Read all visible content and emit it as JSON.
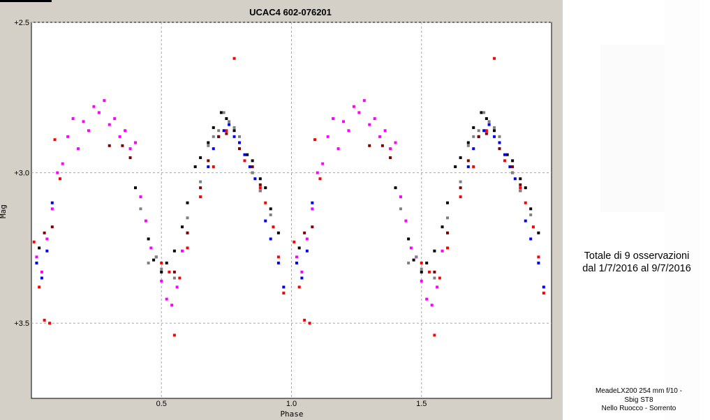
{
  "chart_data": {
    "type": "scatter",
    "title": "UCAC4 602-076201",
    "xlabel": "Phase",
    "ylabel": "Mag",
    "xlim": [
      0.0,
      2.0
    ],
    "ylim": [
      3.75,
      2.5
    ],
    "y_inverted": true,
    "grid": true,
    "xticks": [
      0.5,
      1.0,
      1.5
    ],
    "xtick_labels": [
      "0.5",
      "1.0",
      "1.5"
    ],
    "yticks": [
      2.5,
      3.0,
      3.5
    ],
    "ytick_labels": [
      "+2.5",
      "+3.0",
      "+3.5"
    ],
    "series": [
      {
        "color": "#ff00ff",
        "x": [
          0.02,
          0.04,
          0.06,
          0.08,
          0.1,
          0.12,
          0.14,
          0.16,
          0.18,
          0.2,
          0.22,
          0.24,
          0.26,
          0.28,
          0.3,
          0.32,
          0.34,
          0.36,
          0.38,
          0.4,
          0.42,
          0.44,
          0.46,
          0.48,
          0.5,
          0.52,
          0.54,
          0.56,
          0.58,
          0.6
        ],
        "y": [
          3.28,
          3.33,
          3.22,
          3.12,
          3.0,
          2.97,
          2.88,
          2.82,
          2.92,
          2.83,
          2.86,
          2.78,
          2.8,
          2.76,
          2.84,
          2.82,
          2.88,
          2.86,
          2.92,
          2.9,
          3.08,
          3.16,
          3.25,
          3.28,
          3.36,
          3.42,
          3.44,
          3.38,
          3.26,
          3.2
        ]
      },
      {
        "color": "#ff0000",
        "x": [
          0.01,
          0.03,
          0.05,
          0.07,
          0.09,
          0.11,
          0.5,
          0.53,
          0.55,
          0.57,
          0.6,
          0.65,
          0.7,
          0.75,
          0.78,
          0.8,
          0.82,
          0.85,
          0.88,
          0.9,
          0.93,
          0.95,
          0.97
        ],
        "y": [
          3.23,
          3.38,
          3.49,
          3.5,
          2.89,
          3.02,
          3.3,
          3.33,
          3.54,
          3.35,
          3.25,
          3.08,
          2.98,
          2.86,
          2.62,
          2.92,
          2.96,
          3.0,
          3.05,
          3.1,
          3.18,
          3.28,
          3.4
        ]
      },
      {
        "color": "#000000",
        "x": [
          0.03,
          0.4,
          0.45,
          0.47,
          0.5,
          0.52,
          0.55,
          0.58,
          0.6,
          0.63,
          0.65,
          0.68,
          0.7,
          0.73,
          0.75,
          0.78,
          0.8,
          0.83,
          0.85,
          0.88,
          0.9,
          0.92,
          0.95
        ],
        "y": [
          3.25,
          3.05,
          3.22,
          3.29,
          3.33,
          3.3,
          3.26,
          3.18,
          3.1,
          2.98,
          2.95,
          2.9,
          2.85,
          2.8,
          2.82,
          2.86,
          2.9,
          2.94,
          2.96,
          3.02,
          3.05,
          3.12,
          3.2
        ]
      },
      {
        "color": "#0000ff",
        "x": [
          0.02,
          0.04,
          0.06,
          0.08,
          0.68,
          0.7,
          0.72,
          0.74,
          0.76,
          0.78,
          0.8,
          0.82,
          0.84,
          0.86,
          0.88,
          0.9,
          0.92,
          0.95,
          0.97
        ],
        "y": [
          3.3,
          3.35,
          3.26,
          3.1,
          2.98,
          2.92,
          2.88,
          2.86,
          2.84,
          2.88,
          2.9,
          2.94,
          2.98,
          3.02,
          3.06,
          3.16,
          3.22,
          3.3,
          3.38
        ]
      },
      {
        "color": "#808080",
        "x": [
          0.42,
          0.45,
          0.48,
          0.5,
          0.55,
          0.6,
          0.65,
          0.68,
          0.7,
          0.72,
          0.74,
          0.76,
          0.78,
          0.8,
          0.85,
          0.88,
          0.92
        ],
        "y": [
          3.12,
          3.3,
          3.28,
          3.32,
          3.35,
          3.15,
          3.03,
          2.91,
          2.88,
          2.86,
          2.8,
          2.83,
          2.85,
          2.88,
          3.0,
          3.06,
          3.14
        ]
      },
      {
        "color": "#800000",
        "x": [
          0.05,
          0.08,
          0.3,
          0.35,
          0.38,
          0.55,
          0.6,
          0.65,
          0.68,
          0.72,
          0.75,
          0.8,
          0.85,
          0.88
        ],
        "y": [
          3.2,
          3.18,
          2.91,
          2.91,
          2.95,
          3.33,
          3.2,
          3.05,
          2.96,
          2.88,
          2.87,
          2.92,
          2.98,
          3.04
        ]
      }
    ]
  },
  "annotation": {
    "summary_line1": "Totale di 9 osservazioni",
    "summary_line2": "dal 1/7/2016 al 9/7/2016",
    "equipment_line1": "MeadeLX200 254 mm f/10 -",
    "equipment_line2": "Sbig ST8",
    "equipment_line3": "Nello Ruocco - Sorrento"
  }
}
